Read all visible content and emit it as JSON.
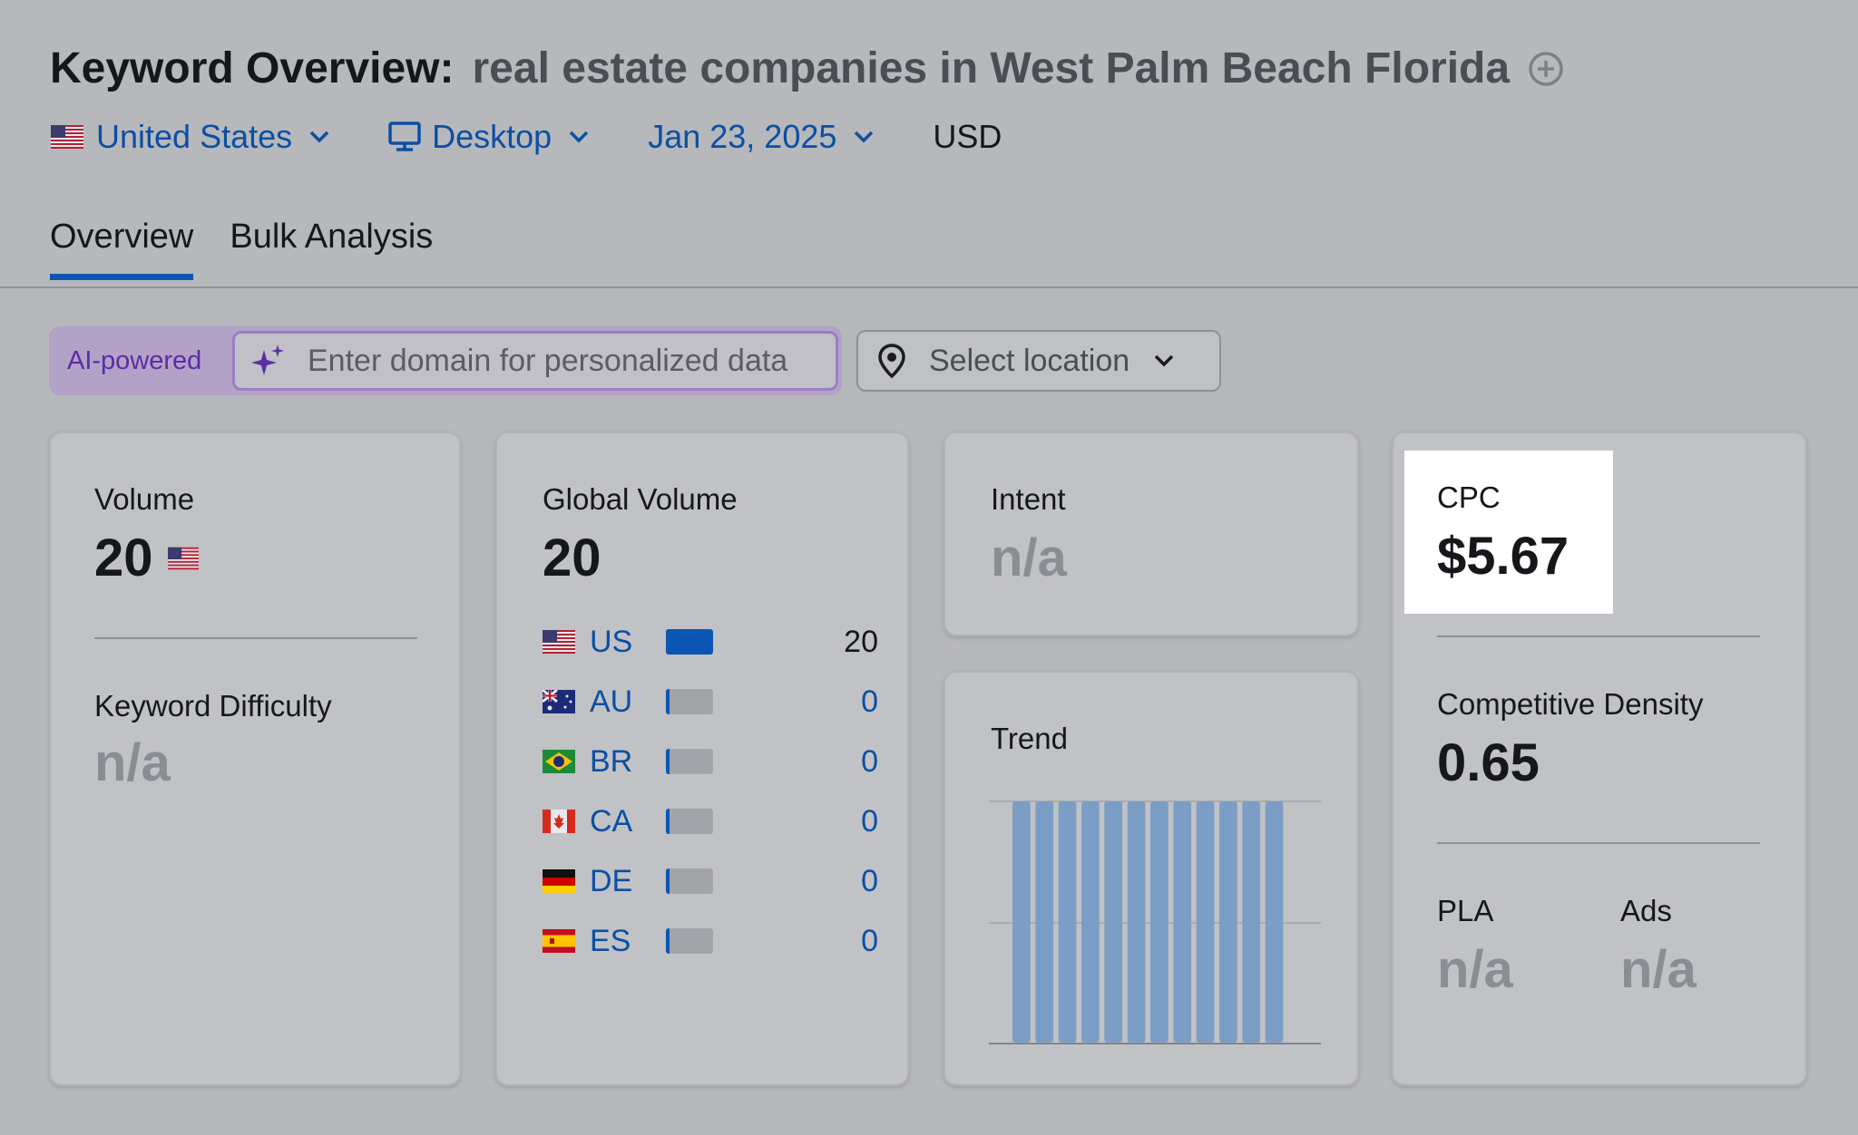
{
  "header": {
    "title": "Keyword Overview:",
    "keyword": "real estate companies in West Palm Beach Florida"
  },
  "filters": {
    "country": "United States",
    "device": "Desktop",
    "date": "Jan 23, 2025",
    "currency": "USD"
  },
  "tabs": [
    {
      "label": "Overview",
      "active": true
    },
    {
      "label": "Bulk Analysis",
      "active": false
    }
  ],
  "personalize": {
    "badge": "AI-powered",
    "placeholder": "Enter domain for personalized data",
    "location_placeholder": "Select location"
  },
  "volume": {
    "label": "Volume",
    "value": "20",
    "difficulty_label": "Keyword Difficulty",
    "difficulty_value": "n/a"
  },
  "global_volume": {
    "label": "Global Volume",
    "value": "20",
    "countries": [
      {
        "code": "US",
        "value": "20",
        "share": 1.0
      },
      {
        "code": "AU",
        "value": "0",
        "share": 0.08
      },
      {
        "code": "BR",
        "value": "0",
        "share": 0.08
      },
      {
        "code": "CA",
        "value": "0",
        "share": 0.08
      },
      {
        "code": "DE",
        "value": "0",
        "share": 0.08
      },
      {
        "code": "ES",
        "value": "0",
        "share": 0.08
      }
    ]
  },
  "intent": {
    "label": "Intent",
    "value": "n/a"
  },
  "trend": {
    "label": "Trend",
    "bars": [
      1,
      1,
      1,
      1,
      1,
      1,
      1,
      1,
      1,
      1,
      1,
      1
    ]
  },
  "cpc": {
    "label": "CPC",
    "value": "$5.67",
    "density_label": "Competitive Density",
    "density_value": "0.65",
    "pla_label": "PLA",
    "pla_value": "n/a",
    "ads_label": "Ads",
    "ads_value": "n/a"
  },
  "colors": {
    "accent": "#0b54b0",
    "ai_purple": "#5a2ea3",
    "trend_bar": "#7b9ec6"
  }
}
